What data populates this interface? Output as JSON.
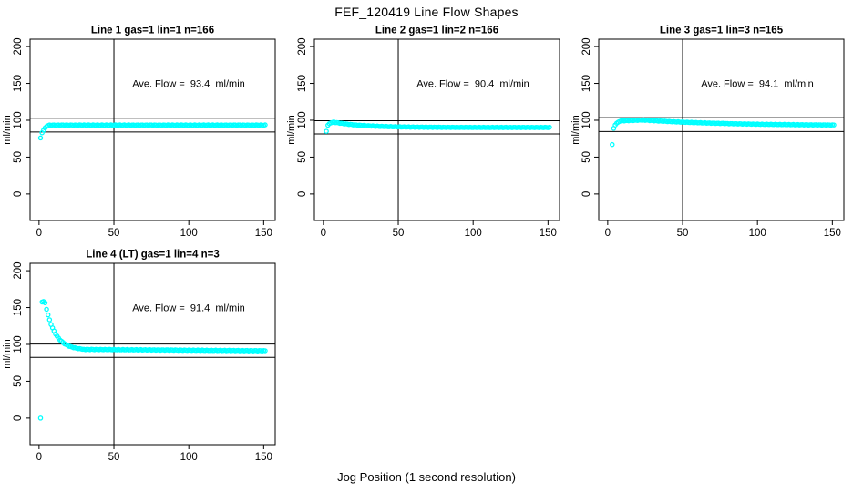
{
  "figure": {
    "title": "FEF_120419  Line Flow Shapes",
    "xlabel": "Jog Position (1 second resolution)"
  },
  "chart_data": {
    "type": "scatter",
    "title": "FEF_120419  Line Flow Shapes",
    "xlabel": "Jog Position (1 second resolution)",
    "ylabel": "ml/min",
    "point_color": "#00ffff",
    "axis_color": "#000000",
    "background_color": "#ffffff",
    "layout": {
      "xlim": [
        -6,
        157.7
      ],
      "ylim": [
        -36,
        210
      ],
      "xticks": [
        0,
        50,
        100,
        150
      ],
      "yticks": [
        0,
        50,
        100,
        150,
        200
      ],
      "vline_x": 50,
      "grid": false,
      "legend": false,
      "annotation_anchor": {
        "x": 100,
        "y": 150
      }
    },
    "panels": [
      {
        "title": "Line 1 gas=1 lin=1 n=166",
        "line": 1,
        "gas": 1,
        "lin": 1,
        "n": 166,
        "ave_flow": 93.4,
        "annotation": "Ave. Flow =  93.4  ml/min",
        "hlines": [
          102.7,
          84.1
        ],
        "points_head": [
          [
            1,
            76
          ],
          [
            2,
            83
          ],
          [
            3,
            86.5
          ],
          [
            4,
            89.5
          ],
          [
            5,
            91.5
          ],
          [
            6,
            92.7
          ]
        ],
        "segments": [
          {
            "type": "const",
            "from": 7,
            "to": 151,
            "y": 93.4,
            "jitter": 0.4
          }
        ]
      },
      {
        "title": "Line 2 gas=1 lin=2 n=166",
        "line": 2,
        "gas": 1,
        "lin": 2,
        "n": 166,
        "ave_flow": 90.4,
        "annotation": "Ave. Flow =  90.4  ml/min",
        "hlines": [
          99.4,
          81.4
        ],
        "points_head": [
          [
            2,
            85
          ],
          [
            3,
            93.3
          ],
          [
            4,
            95.4
          ],
          [
            5,
            96.4
          ],
          [
            6,
            97.0
          ]
        ],
        "segments": [
          {
            "type": "exp",
            "from": 7,
            "to": 151,
            "base": 90.2,
            "amp": 7.2,
            "tau": 20,
            "x0": 7,
            "jitter": 0.35
          }
        ]
      },
      {
        "title": "Line 3 gas=1 lin=3 n=165",
        "line": 3,
        "gas": 1,
        "lin": 3,
        "n": 165,
        "ave_flow": 94.1,
        "annotation": "Ave. Flow =  94.1  ml/min",
        "hlines": [
          103.5,
          84.7
        ],
        "points_head": [
          [
            3,
            67
          ],
          [
            4,
            89
          ],
          [
            5,
            93.5
          ],
          [
            6,
            96
          ],
          [
            7,
            97.5
          ],
          [
            8,
            98.5
          ]
        ],
        "segments": [
          {
            "type": "linear",
            "from": 9,
            "to": 24,
            "y0": 99.2,
            "y1": 100.3,
            "jitter": 0.3
          },
          {
            "type": "exp",
            "from": 25,
            "to": 151,
            "base": 92.8,
            "amp": 7.5,
            "tau": 55,
            "x0": 24,
            "jitter": 0.35
          }
        ]
      },
      {
        "title": "Line 4 (LT) gas=1 lin=4 n=3",
        "line": 4,
        "gas": 1,
        "lin": 4,
        "n": 3,
        "ave_flow": 91.4,
        "annotation": "Ave. Flow =  91.4  ml/min",
        "hlines": [
          100.5,
          82.3
        ],
        "points_head": [
          [
            1,
            0
          ],
          [
            2,
            157.5
          ],
          [
            3,
            158.2
          ],
          [
            4,
            156.5
          ]
        ],
        "segments": [
          {
            "type": "exp",
            "from": 5,
            "to": 29,
            "base": 92.2,
            "amp": 65,
            "tau": 6.5,
            "x0": 4,
            "jitter": 0.35
          },
          {
            "type": "linear",
            "from": 30,
            "to": 151,
            "y0": 93.2,
            "y1": 91.3,
            "jitter": 0.4
          }
        ]
      }
    ]
  }
}
